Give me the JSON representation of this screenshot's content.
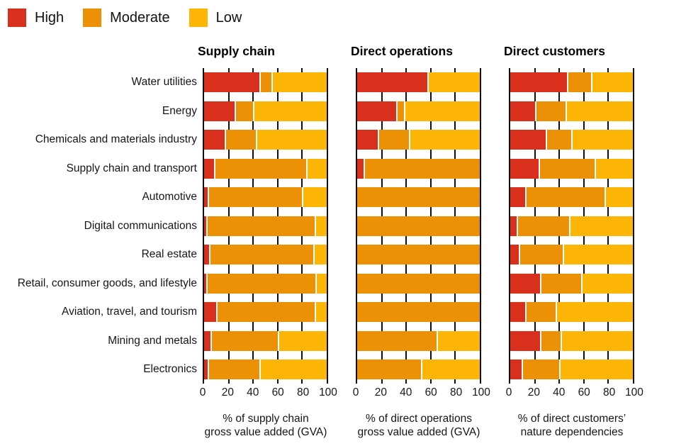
{
  "legend": [
    {
      "label": "High",
      "color": "#d9301e"
    },
    {
      "label": "Moderate",
      "color": "#ec9105"
    },
    {
      "label": "Low",
      "color": "#fdb605"
    }
  ],
  "chart_data": {
    "type": "bar",
    "stacked": true,
    "orientation": "horizontal",
    "legend_position": "top-left",
    "grid": "vertical ticks at 20-unit intervals",
    "series_keys": [
      "High",
      "Moderate",
      "Low"
    ],
    "series_colors": [
      "#d9301e",
      "#ec9105",
      "#fdb605"
    ],
    "xlim": [
      0,
      100
    ],
    "ticks": [
      0,
      20,
      40,
      60,
      80,
      100
    ],
    "categories": [
      "Water utilities",
      "Energy",
      "Chemicals and materials industry",
      "Supply chain and transport",
      "Automotive",
      "Digital communications",
      "Real estate",
      "Retail, consumer goods, and lifestyle",
      "Aviation, travel, and tourism",
      "Mining and metals",
      "Electronics"
    ],
    "panels": [
      {
        "title": "Supply chain",
        "xlabel": "% of supply chain gross value added (GVA)",
        "xlabel_lines": [
          "% of supply chain",
          "gross value added (GVA)"
        ],
        "rows": [
          [
            45,
            10,
            45
          ],
          [
            25,
            15,
            60
          ],
          [
            17,
            25,
            58
          ],
          [
            8,
            75,
            17
          ],
          [
            3,
            77,
            20
          ],
          [
            2,
            88,
            10
          ],
          [
            4,
            85,
            11
          ],
          [
            2,
            89,
            9
          ],
          [
            10,
            80,
            10
          ],
          [
            5,
            55,
            40
          ],
          [
            3,
            42,
            55
          ]
        ]
      },
      {
        "title": "Direct operations",
        "xlabel": "% of direct operations gross value added (GVA)",
        "xlabel_lines": [
          "% of direct operations",
          "gross value added (GVA)"
        ],
        "rows": [
          [
            57,
            0,
            43
          ],
          [
            32,
            6,
            62
          ],
          [
            17,
            25,
            58
          ],
          [
            5,
            95,
            0
          ],
          [
            0,
            100,
            0
          ],
          [
            0,
            100,
            0
          ],
          [
            0,
            100,
            0
          ],
          [
            0,
            100,
            0
          ],
          [
            0,
            100,
            0
          ],
          [
            0,
            65,
            35
          ],
          [
            0,
            52,
            48
          ]
        ]
      },
      {
        "title": "Direct customers",
        "xlabel": "% of direct customers' nature dependencies",
        "xlabel_lines": [
          "% of direct customers’",
          "nature dependencies"
        ],
        "rows": [
          [
            46,
            20,
            34
          ],
          [
            20,
            25,
            55
          ],
          [
            29,
            21,
            50
          ],
          [
            23,
            46,
            31
          ],
          [
            12,
            65,
            23
          ],
          [
            5,
            43,
            52
          ],
          [
            7,
            36,
            57
          ],
          [
            24,
            34,
            42
          ],
          [
            12,
            25,
            63
          ],
          [
            24,
            17,
            59
          ],
          [
            9,
            31,
            60
          ]
        ]
      }
    ]
  }
}
